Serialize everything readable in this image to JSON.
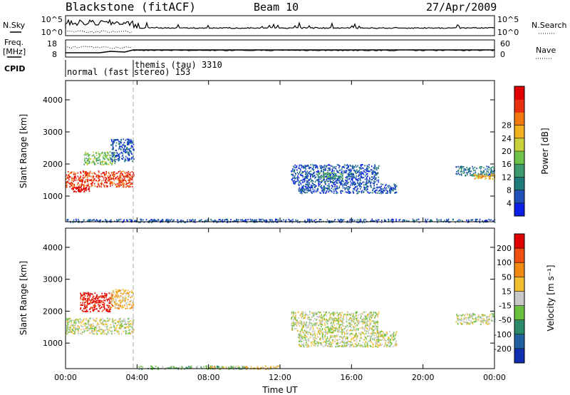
{
  "header": {
    "station": "Blackstone (fitACF)",
    "beam": "Beam 10",
    "date": "27/Apr/2009"
  },
  "top_panels": {
    "nsky_label": "N.Sky",
    "nsearch_label": "N.Search",
    "freq_label_1": "Freq.",
    "freq_label_2": "[MHz]",
    "nave_label": "Nave",
    "cpid_label": "CPID",
    "nsky_ticks": [
      "10^5",
      "10^0"
    ],
    "nsearch_ticks": [
      "10^5",
      "10^0"
    ],
    "freq_ticks": [
      "18",
      "8"
    ],
    "nave_ticks": [
      "60",
      "0"
    ],
    "cpid_modes": [
      {
        "name": "normal (fast stereo)",
        "id": "153"
      },
      {
        "name": "themis (tau)",
        "id": "3310"
      }
    ]
  },
  "chart_data": [
    {
      "type": "heatmap",
      "title": "",
      "xlabel": "",
      "ylabel": "Slant Range [km]",
      "xticks": [
        "00:00",
        "04:00",
        "08:00",
        "12:00",
        "16:00",
        "20:00",
        "00:00"
      ],
      "yticks": [
        "1000",
        "2000",
        "3000",
        "4000"
      ],
      "ylim": [
        200,
        4600
      ],
      "xlim_hours": [
        0,
        24
      ],
      "colorbar": {
        "label": "Power [dB]",
        "ticks": [
          "4",
          "8",
          "12",
          "16",
          "20",
          "24",
          "28"
        ],
        "colors": [
          "#0b1fe6",
          "#2050b8",
          "#1f7a7a",
          "#3c9a6e",
          "#6fc24a",
          "#c8d23a",
          "#f0b020",
          "#f07a10",
          "#e83010",
          "#e00000"
        ]
      },
      "scatter_regions": [
        {
          "t0": 0.0,
          "t1": 3.8,
          "r0": 1300,
          "r1": 1800,
          "level": 8
        },
        {
          "t0": 0.3,
          "t1": 1.3,
          "r0": 1150,
          "r1": 1300,
          "level": 9
        },
        {
          "t0": 1.0,
          "t1": 2.8,
          "r0": 2000,
          "r1": 2400,
          "level": 4
        },
        {
          "t0": 2.5,
          "t1": 3.8,
          "r0": 2100,
          "r1": 2800,
          "level": 1
        },
        {
          "t0": 12.6,
          "t1": 17.5,
          "r0": 1400,
          "r1": 2000,
          "level": 1
        },
        {
          "t0": 13.0,
          "t1": 18.5,
          "r0": 1100,
          "r1": 1400,
          "level": 1
        },
        {
          "t0": 14.0,
          "t1": 15.5,
          "r0": 1550,
          "r1": 1750,
          "level": 3
        },
        {
          "t0": 21.8,
          "t1": 24.0,
          "r0": 1650,
          "r1": 1950,
          "level": 2
        },
        {
          "t0": 22.8,
          "t1": 24.0,
          "r0": 1550,
          "r1": 1700,
          "level": 6
        },
        {
          "t0": 0.0,
          "t1": 24.0,
          "r0": 200,
          "r1": 300,
          "level": 1
        }
      ]
    },
    {
      "type": "heatmap",
      "title": "",
      "xlabel": "Time UT",
      "ylabel": "Slant Range [km]",
      "xticks": [
        "00:00",
        "04:00",
        "08:00",
        "12:00",
        "16:00",
        "20:00",
        "00:00"
      ],
      "yticks": [
        "1000",
        "2000",
        "3000",
        "4000"
      ],
      "ylim": [
        200,
        4600
      ],
      "xlim_hours": [
        0,
        24
      ],
      "colorbar": {
        "label": "Velocity [m s⁻¹]",
        "ticks": [
          "200",
          "100",
          "50",
          "15",
          "-15",
          "-50",
          "-100",
          "-200"
        ],
        "colors": [
          "#1030b0",
          "#2060a0",
          "#2a8a6a",
          "#6cc040",
          "#c8c8c8",
          "#f0c030",
          "#f08a10",
          "#f05010",
          "#e00000"
        ]
      },
      "scatter_regions": [
        {
          "t0": 0.0,
          "t1": 3.8,
          "r0": 1300,
          "r1": 1800,
          "level": 4
        },
        {
          "t0": 0.8,
          "t1": 2.6,
          "r0": 2000,
          "r1": 2600,
          "level": 8
        },
        {
          "t0": 2.5,
          "t1": 3.8,
          "r0": 2100,
          "r1": 2700,
          "level": 5
        },
        {
          "t0": 12.6,
          "t1": 17.5,
          "r0": 1400,
          "r1": 2000,
          "level": 4
        },
        {
          "t0": 13.0,
          "t1": 18.5,
          "r0": 900,
          "r1": 1400,
          "level": 4
        },
        {
          "t0": 21.8,
          "t1": 24.0,
          "r0": 1600,
          "r1": 1950,
          "level": 4
        },
        {
          "t0": 8.0,
          "t1": 12.0,
          "r0": 200,
          "r1": 300,
          "level": 5
        },
        {
          "t0": 4.0,
          "t1": 10.0,
          "r0": 200,
          "r1": 300,
          "level": 3
        }
      ]
    }
  ]
}
